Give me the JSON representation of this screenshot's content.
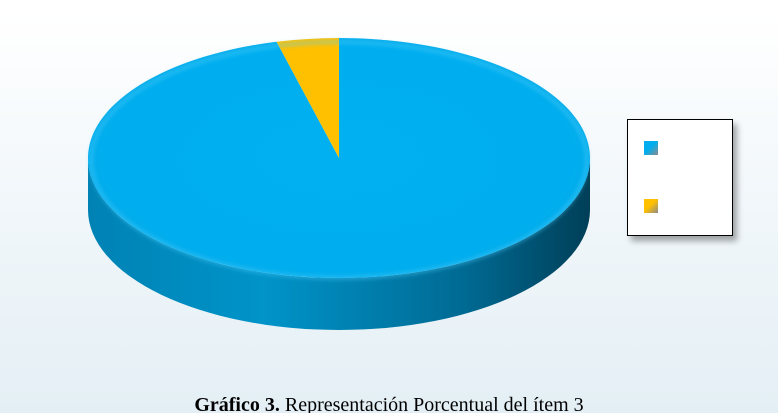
{
  "chart_data": {
    "type": "pie",
    "style": "3d",
    "title": "",
    "slices": [
      {
        "name": "",
        "value": 96,
        "color": "#00aeef"
      },
      {
        "name": "",
        "value": 4,
        "color": "#ffc000"
      }
    ],
    "legend": {
      "placement": "right"
    }
  },
  "caption": {
    "bold": "Gráfico 3.",
    "text": " Representación Porcentual del ítem 3"
  }
}
